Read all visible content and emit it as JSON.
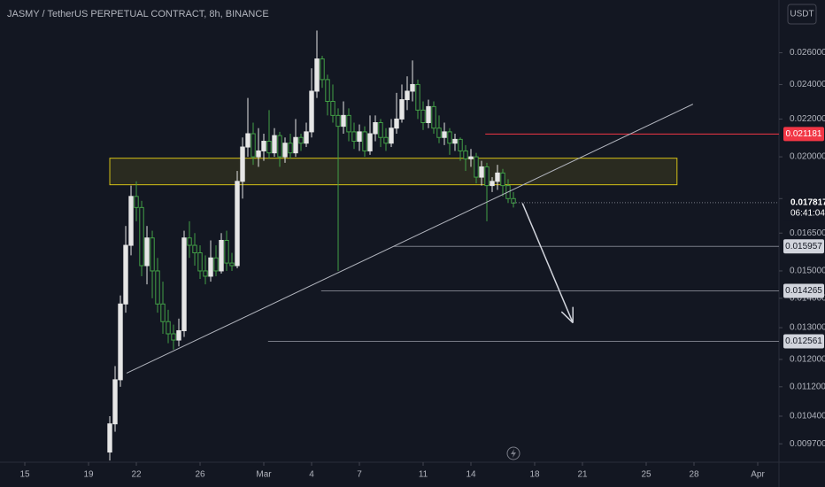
{
  "chart_data": {
    "type": "candlestick",
    "title": "JASMY / TetherUS PERPETUAL CONTRACT, 8h, BINANCE",
    "currency": "USDT",
    "log_scale": true,
    "ylim": [
      0.00926,
      0.0297
    ],
    "yticks": [
      {
        "value": 0.026,
        "label": "0.026000"
      },
      {
        "value": 0.024,
        "label": "0.024000"
      },
      {
        "value": 0.022,
        "label": "0.022000"
      },
      {
        "value": 0.02,
        "label": "0.020000"
      },
      {
        "value": 0.018,
        "label": "0.018000"
      },
      {
        "value": 0.0165,
        "label": "0.016500"
      },
      {
        "value": 0.015,
        "label": "0.015000"
      },
      {
        "value": 0.014,
        "label": "0.014000"
      },
      {
        "value": 0.013,
        "label": "0.013000"
      },
      {
        "value": 0.012,
        "label": "0.012000"
      },
      {
        "value": 0.0112,
        "label": "0.011200"
      },
      {
        "value": 0.0104,
        "label": "0.010400"
      },
      {
        "value": 0.0097,
        "label": "0.009700"
      }
    ],
    "xlim": [
      -20.67,
      126
    ],
    "xticks": [
      {
        "value": -16,
        "label": "15"
      },
      {
        "value": -4,
        "label": "19"
      },
      {
        "value": 5,
        "label": "22"
      },
      {
        "value": 17,
        "label": "26"
      },
      {
        "value": 29,
        "label": "Mar"
      },
      {
        "value": 38,
        "label": "4"
      },
      {
        "value": 47,
        "label": "7"
      },
      {
        "value": 59,
        "label": "11"
      },
      {
        "value": 68,
        "label": "14"
      },
      {
        "value": 80,
        "label": "18"
      },
      {
        "value": 89,
        "label": "21"
      },
      {
        "value": 101,
        "label": "25"
      },
      {
        "value": 110,
        "label": "28"
      },
      {
        "value": 122,
        "label": "Apr"
      }
    ],
    "up_color": "#e6e6e6",
    "down_color": "#43a047",
    "ohlc": [
      [
        0.0095,
        0.0104,
        0.0093,
        0.0102
      ],
      [
        0.0102,
        0.0118,
        0.01,
        0.0114
      ],
      [
        0.0114,
        0.0141,
        0.0112,
        0.0138
      ],
      [
        0.0138,
        0.0168,
        0.0135,
        0.016
      ],
      [
        0.016,
        0.0186,
        0.0156,
        0.0181
      ],
      [
        0.0181,
        0.0188,
        0.017,
        0.0176
      ],
      [
        0.0176,
        0.0179,
        0.0148,
        0.0152
      ],
      [
        0.0152,
        0.0168,
        0.0145,
        0.0163
      ],
      [
        0.0163,
        0.0166,
        0.014,
        0.015
      ],
      [
        0.015,
        0.0155,
        0.0135,
        0.0138
      ],
      [
        0.0138,
        0.0146,
        0.0128,
        0.0132
      ],
      [
        0.0132,
        0.0136,
        0.0125,
        0.0128
      ],
      [
        0.0128,
        0.0131,
        0.0123,
        0.0126
      ],
      [
        0.0126,
        0.0133,
        0.0124,
        0.0129
      ],
      [
        0.0129,
        0.0166,
        0.0127,
        0.0163
      ],
      [
        0.0163,
        0.017,
        0.0155,
        0.016
      ],
      [
        0.016,
        0.0165,
        0.0152,
        0.0157
      ],
      [
        0.0157,
        0.016,
        0.0147,
        0.015
      ],
      [
        0.015,
        0.0156,
        0.0145,
        0.0148
      ],
      [
        0.0148,
        0.0162,
        0.0146,
        0.0155
      ],
      [
        0.0155,
        0.016,
        0.0148,
        0.015
      ],
      [
        0.015,
        0.0165,
        0.0149,
        0.0162
      ],
      [
        0.0162,
        0.0166,
        0.015,
        0.0153
      ],
      [
        0.0153,
        0.0157,
        0.015,
        0.0152
      ],
      [
        0.0152,
        0.0193,
        0.0151,
        0.0188
      ],
      [
        0.0188,
        0.021,
        0.018,
        0.0205
      ],
      [
        0.0205,
        0.0232,
        0.02,
        0.0212
      ],
      [
        0.0212,
        0.0218,
        0.0196,
        0.02
      ],
      [
        0.02,
        0.0215,
        0.0195,
        0.0203
      ],
      [
        0.0203,
        0.0212,
        0.0198,
        0.0208
      ],
      [
        0.0208,
        0.0225,
        0.0199,
        0.0202
      ],
      [
        0.0202,
        0.0215,
        0.02,
        0.0211
      ],
      [
        0.0211,
        0.0213,
        0.0195,
        0.02
      ],
      [
        0.02,
        0.021,
        0.0197,
        0.0207
      ],
      [
        0.0207,
        0.0212,
        0.0199,
        0.0202
      ],
      [
        0.0202,
        0.022,
        0.02,
        0.021
      ],
      [
        0.021,
        0.0212,
        0.0203,
        0.0207
      ],
      [
        0.0207,
        0.0218,
        0.0205,
        0.0213
      ],
      [
        0.0213,
        0.025,
        0.021,
        0.0236
      ],
      [
        0.0236,
        0.0275,
        0.0232,
        0.0256
      ],
      [
        0.0256,
        0.0258,
        0.0238,
        0.0243
      ],
      [
        0.0243,
        0.0246,
        0.0222,
        0.023
      ],
      [
        0.023,
        0.024,
        0.0218,
        0.0222
      ],
      [
        0.0222,
        0.0226,
        0.015,
        0.0216
      ],
      [
        0.0216,
        0.023,
        0.0212,
        0.0222
      ],
      [
        0.0222,
        0.0226,
        0.0208,
        0.0213
      ],
      [
        0.0213,
        0.0218,
        0.0204,
        0.0208
      ],
      [
        0.0208,
        0.0217,
        0.0203,
        0.0213
      ],
      [
        0.0213,
        0.0216,
        0.02,
        0.0203
      ],
      [
        0.0203,
        0.0222,
        0.0201,
        0.0212
      ],
      [
        0.0212,
        0.0222,
        0.0208,
        0.0218
      ],
      [
        0.0218,
        0.022,
        0.0205,
        0.021
      ],
      [
        0.021,
        0.0215,
        0.0203,
        0.0207
      ],
      [
        0.0207,
        0.022,
        0.0205,
        0.0215
      ],
      [
        0.0215,
        0.0235,
        0.0212,
        0.022
      ],
      [
        0.022,
        0.024,
        0.0218,
        0.0231
      ],
      [
        0.0231,
        0.0245,
        0.0225,
        0.0236
      ],
      [
        0.0236,
        0.0255,
        0.023,
        0.024
      ],
      [
        0.024,
        0.0243,
        0.022,
        0.0225
      ],
      [
        0.0225,
        0.023,
        0.0214,
        0.0218
      ],
      [
        0.0218,
        0.0231,
        0.0215,
        0.0227
      ],
      [
        0.0227,
        0.023,
        0.0212,
        0.0215
      ],
      [
        0.0215,
        0.0222,
        0.0207,
        0.021
      ],
      [
        0.021,
        0.0218,
        0.0206,
        0.0213
      ],
      [
        0.0213,
        0.0215,
        0.0201,
        0.0207
      ],
      [
        0.0207,
        0.0212,
        0.0203,
        0.0209
      ],
      [
        0.0209,
        0.021,
        0.0198,
        0.0203
      ],
      [
        0.0203,
        0.0206,
        0.0193,
        0.0199
      ],
      [
        0.0199,
        0.0204,
        0.0195,
        0.02
      ],
      [
        0.02,
        0.0202,
        0.0187,
        0.019
      ],
      [
        0.019,
        0.0198,
        0.0186,
        0.0195
      ],
      [
        0.0195,
        0.0197,
        0.017,
        0.0186
      ],
      [
        0.0186,
        0.019,
        0.0183,
        0.0188
      ],
      [
        0.0188,
        0.0196,
        0.0184,
        0.0192
      ],
      [
        0.0192,
        0.0194,
        0.0181,
        0.0186
      ],
      [
        0.0186,
        0.0189,
        0.0178,
        0.018
      ],
      [
        0.018,
        0.0183,
        0.0176,
        0.0178
      ]
    ],
    "last_price": 0.017817,
    "countdown": "06:41:04",
    "zone": {
      "x": [
        0,
        106.8
      ],
      "y": [
        0.01864,
        0.01993
      ],
      "color": "#d4c017"
    },
    "trendline": {
      "x": [
        3.17,
        109.8
      ],
      "y": [
        0.01159,
        0.02284
      ],
      "color": "#b2b5be"
    },
    "arrow": {
      "x": [
        77.7,
        87.2
      ],
      "y": [
        0.01779,
        0.01316
      ],
      "color": "#d1d4dc"
    },
    "levels": [
      {
        "value": 0.021181,
        "x0": 70.7,
        "color": "#f23645"
      },
      {
        "value": 0.015957,
        "x0": 53.5,
        "color": "#787b86"
      },
      {
        "value": 0.014265,
        "x0": 39.8,
        "color": "#787b86"
      },
      {
        "value": 0.012561,
        "x0": 29.8,
        "color": "#787b86"
      }
    ]
  }
}
